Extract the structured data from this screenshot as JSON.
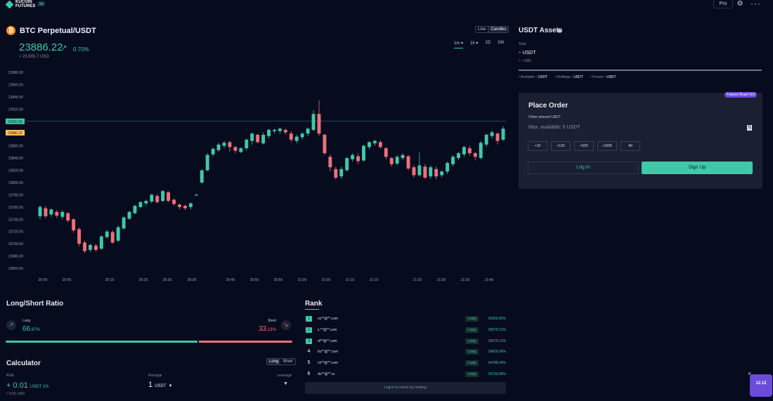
{
  "header": {
    "logo_text": "KUCOIN",
    "logo_sub": "FUTURES",
    "logo_badge": "12",
    "pro_label": "Pro",
    "settings_icon": "gear-icon",
    "more_icon": "more-dots-icon"
  },
  "pair": {
    "icon": "bitcoin-icon",
    "name": "BTC Perpetual/USDT",
    "price": "23886.22",
    "change_pct": "0.70%",
    "price_usd": "≈ 23,905.7 USD"
  },
  "chart_controls": {
    "line_label": "Line",
    "candles_label": "Candles",
    "intervals": [
      "1m",
      "1h",
      "1D",
      "1W"
    ],
    "selected_interval": "1m"
  },
  "chart_data": {
    "type": "candlestick",
    "y_ticks": [
      "23980.00",
      "23960.00",
      "23940.00",
      "23920.00",
      "23900.00",
      "23880.00",
      "23860.00",
      "23840.00",
      "23820.00",
      "23800.00",
      "23780.00",
      "23760.00",
      "23740.00",
      "23720.00",
      "23700.00",
      "23680.00",
      "23660.00"
    ],
    "ylim": [
      23650,
      23990
    ],
    "x_ticks": [
      "20:00",
      "20:05",
      "20:15",
      "20:25",
      "20:30",
      "20:36",
      "20:45",
      "20:50",
      "20:55",
      "21:00",
      "21:05",
      "21:10",
      "21:15",
      "21:25",
      "21:30",
      "21:35",
      "21:40"
    ],
    "last_price_label": "23886.22",
    "marker_label": "23900.00",
    "marker_price": 23900,
    "candles": [
      [
        23745,
        23760,
        23740,
        23763
      ],
      [
        23758,
        23745,
        23742,
        23762
      ],
      [
        23748,
        23756,
        23744,
        23758
      ],
      [
        23752,
        23746,
        23742,
        23755
      ],
      [
        23744,
        23752,
        23740,
        23755
      ],
      [
        23750,
        23738,
        23735,
        23752
      ],
      [
        23740,
        23722,
        23718,
        23742
      ],
      [
        23724,
        23700,
        23696,
        23727
      ],
      [
        23702,
        23688,
        23685,
        23705
      ],
      [
        23690,
        23698,
        23686,
        23700
      ],
      [
        23697,
        23690,
        23687,
        23700
      ],
      [
        23692,
        23712,
        23690,
        23714
      ],
      [
        23711,
        23720,
        23708,
        23723
      ],
      [
        23719,
        23702,
        23700,
        23722
      ],
      [
        23705,
        23727,
        23703,
        23730
      ],
      [
        23725,
        23743,
        23723,
        23745
      ],
      [
        23741,
        23752,
        23739,
        23754
      ],
      [
        23750,
        23762,
        23748,
        23764
      ],
      [
        23760,
        23768,
        23758,
        23770
      ],
      [
        23766,
        23770,
        23762,
        23772
      ],
      [
        23769,
        23780,
        23766,
        23782
      ],
      [
        23778,
        23768,
        23766,
        23781
      ],
      [
        23770,
        23786,
        23768,
        23788
      ],
      [
        23784,
        23770,
        23768,
        23786
      ],
      [
        23772,
        23765,
        23762,
        23774
      ],
      [
        23764,
        23760,
        23756,
        23766
      ],
      [
        23762,
        23758,
        23755,
        23764
      ],
      [
        23760,
        23766,
        23756,
        23768
      ],
      [
        23780,
        23780,
        23778,
        23782
      ],
      [
        23800,
        23820,
        23798,
        23822
      ],
      [
        23820,
        23845,
        23818,
        23848
      ],
      [
        23846,
        23855,
        23842,
        23858
      ],
      [
        23853,
        23862,
        23850,
        23865
      ],
      [
        23860,
        23865,
        23856,
        23868
      ],
      [
        23866,
        23858,
        23850,
        23868
      ],
      [
        23858,
        23852,
        23848,
        23860
      ],
      [
        23850,
        23856,
        23848,
        23858
      ],
      [
        23856,
        23870,
        23852,
        23872
      ],
      [
        23868,
        23880,
        23862,
        23882
      ],
      [
        23878,
        23866,
        23864,
        23880
      ],
      [
        23864,
        23878,
        23862,
        23882
      ],
      [
        23876,
        23886,
        23872,
        23888
      ],
      [
        23884,
        23886,
        23880,
        23888
      ],
      [
        23884,
        23888,
        23880,
        23890
      ],
      [
        23886,
        23882,
        23878,
        23888
      ],
      [
        23880,
        23870,
        23866,
        23884
      ],
      [
        23868,
        23875,
        23864,
        23878
      ],
      [
        23874,
        23880,
        23870,
        23882
      ],
      [
        23880,
        23888,
        23876,
        23890
      ],
      [
        23886,
        23912,
        23884,
        23918
      ],
      [
        23912,
        23880,
        23876,
        23934
      ],
      [
        23878,
        23848,
        23845,
        23880
      ],
      [
        23842,
        23825,
        23818,
        23846
      ],
      [
        23822,
        23808,
        23805,
        23826
      ],
      [
        23810,
        23822,
        23806,
        23826
      ],
      [
        23820,
        23840,
        23818,
        23842
      ],
      [
        23838,
        23845,
        23834,
        23848
      ],
      [
        23843,
        23835,
        23830,
        23848
      ],
      [
        23836,
        23860,
        23834,
        23862
      ],
      [
        23858,
        23866,
        23854,
        23868
      ],
      [
        23864,
        23868,
        23860,
        23870
      ],
      [
        23866,
        23858,
        23855,
        23869
      ],
      [
        23856,
        23842,
        23838,
        23858
      ],
      [
        23840,
        23830,
        23826,
        23842
      ],
      [
        23831,
        23842,
        23828,
        23845
      ],
      [
        23840,
        23845,
        23836,
        23848
      ],
      [
        23843,
        23823,
        23820,
        23845
      ],
      [
        23825,
        23812,
        23808,
        23828
      ],
      [
        23812,
        23828,
        23810,
        23849
      ],
      [
        23826,
        23808,
        23806,
        23830
      ],
      [
        23810,
        23825,
        23806,
        23828
      ],
      [
        23822,
        23810,
        23805,
        23826
      ],
      [
        23812,
        23818,
        23808,
        23820
      ],
      [
        23818,
        23832,
        23814,
        23834
      ],
      [
        23830,
        23842,
        23826,
        23845
      ],
      [
        23840,
        23848,
        23836,
        23850
      ],
      [
        23846,
        23858,
        23842,
        23860
      ],
      [
        23856,
        23848,
        23844,
        23860
      ],
      [
        23848,
        23842,
        23836,
        23850
      ],
      [
        23840,
        23865,
        23838,
        23868
      ],
      [
        23862,
        23878,
        23858,
        23880
      ],
      [
        23876,
        23882,
        23872,
        23885
      ],
      [
        23880,
        23868,
        23862,
        23882
      ],
      [
        23870,
        23888,
        23868,
        23892
      ]
    ]
  },
  "assets": {
    "title": "USDT Assets",
    "eye_icon": "eye-icon",
    "total_label": "Total",
    "total_value": "⁃ USDT",
    "total_usd": "≈ - USD",
    "available": "Available",
    "available_val": "- USDT",
    "holdings": "Holdings",
    "holdings_val": "- USDT",
    "frozen": "Frozen",
    "frozen_val": "- USDT"
  },
  "order": {
    "badge": "Futures Brawl 3v3",
    "title": "Place Order",
    "amount_label": "Order amount USDT",
    "placeholder": "Max. available: 0 USDT",
    "quick": [
      "+10",
      "+100",
      "+500",
      "+1000",
      "All"
    ],
    "login": "Log In",
    "signup": "Sign Up"
  },
  "long_short": {
    "title": "Long/Short Ratio",
    "long_label": "Long",
    "long_int": "66",
    "long_dec": ".87%",
    "long_pct": 66.87,
    "short_label": "Short",
    "short_int": "33",
    "short_dec": ".13%"
  },
  "calculator": {
    "title": "Calculator",
    "long": "Long",
    "short": "Short",
    "roe_label": "ROE",
    "roe_value": "+ 0.01",
    "roe_unit": "USDT 1%",
    "roe_usd": "≈ 0.01 USD",
    "principal_label": "Principal",
    "principal_value": "1",
    "principal_unit": "USDT",
    "leverage_label": "Leverage"
  },
  "rank": {
    "title": "Rank",
    "rows": [
      {
        "no": "1",
        "user": "ve**@**.com",
        "side": "Long",
        "roi": "25090.82%"
      },
      {
        "no": "2",
        "user": "z.**@**.com",
        "side": "Long",
        "roi": "25070.21%"
      },
      {
        "no": "3",
        "user": "di**@**.com",
        "side": "Long",
        "roi": "25070.21%"
      },
      {
        "no": "4",
        "user": "bu**@**.com",
        "side": "Long",
        "roi": "24839.99%"
      },
      {
        "no": "5",
        "user": "ch**@**.com",
        "side": "Long",
        "roi": "24789.24%"
      },
      {
        "no": "6",
        "user": "do**@**.ru",
        "side": "Long",
        "roi": "24733.58%"
      }
    ],
    "login_link": "Log In",
    "login_rest": " to check my ranking"
  },
  "promo": {
    "close": "×",
    "badge": "12.12"
  }
}
